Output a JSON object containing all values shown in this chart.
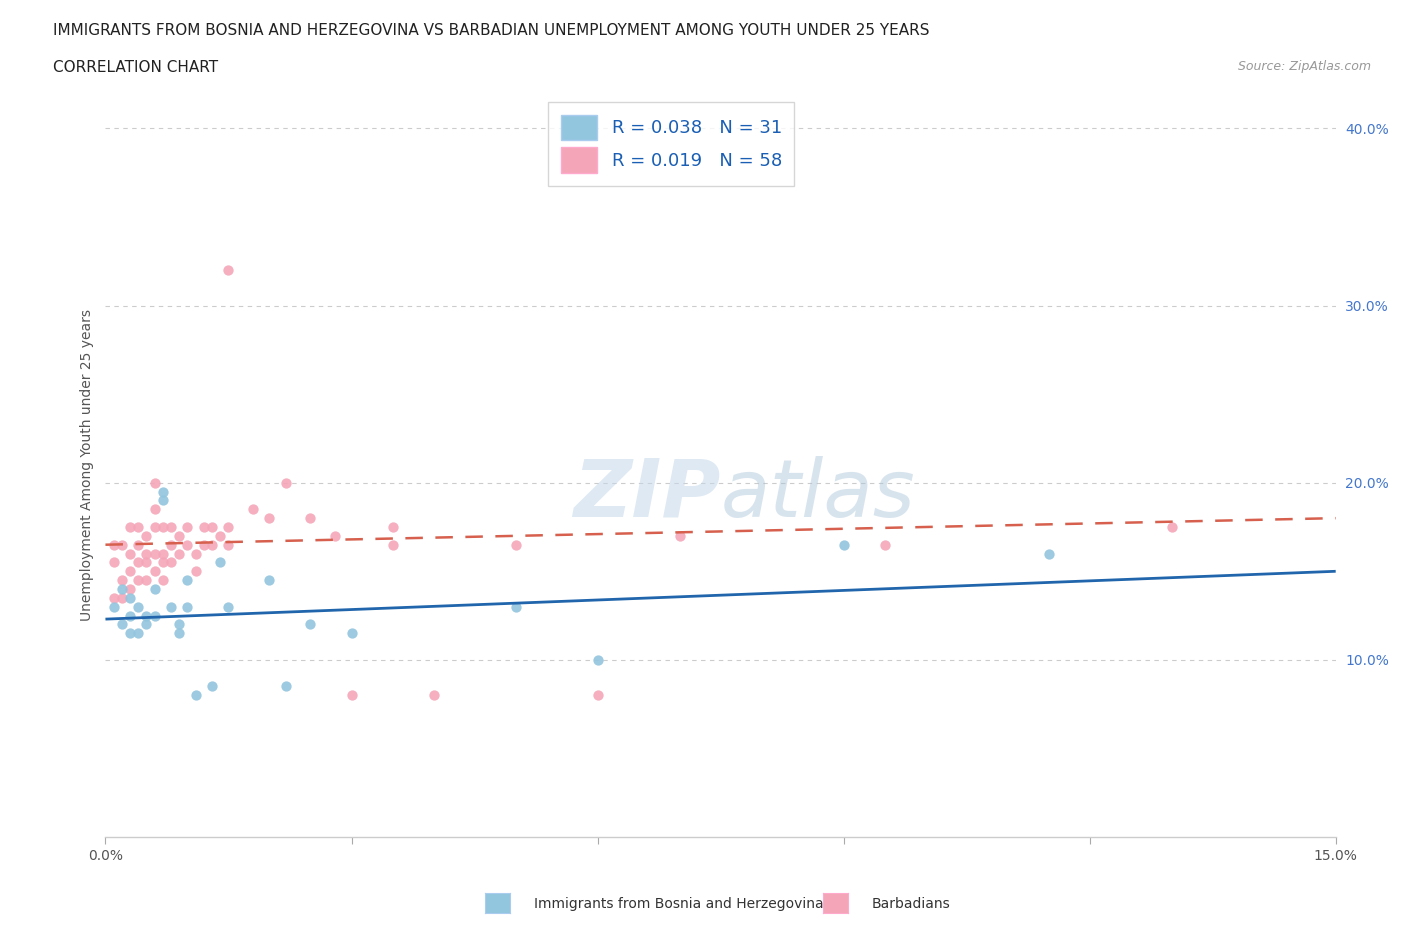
{
  "title_line1": "IMMIGRANTS FROM BOSNIA AND HERZEGOVINA VS BARBADIAN UNEMPLOYMENT AMONG YOUTH UNDER 25 YEARS",
  "title_line2": "CORRELATION CHART",
  "source_text": "Source: ZipAtlas.com",
  "ylabel": "Unemployment Among Youth under 25 years",
  "xlim": [
    0.0,
    0.15
  ],
  "ylim": [
    0.0,
    0.42
  ],
  "y_ticks_right": [
    0.1,
    0.2,
    0.3,
    0.4
  ],
  "y_tick_labels_right": [
    "10.0%",
    "20.0%",
    "30.0%",
    "40.0%"
  ],
  "blue_color": "#92c5de",
  "pink_color": "#f4a6b8",
  "blue_line_color": "#2166ac",
  "pink_line_color": "#d6604d",
  "blue_label": "Immigrants from Bosnia and Herzegovina",
  "pink_label": "Barbadians",
  "R_blue": 0.038,
  "N_blue": 31,
  "R_pink": 0.019,
  "N_pink": 58,
  "blue_scatter_x": [
    0.001,
    0.002,
    0.002,
    0.003,
    0.003,
    0.003,
    0.004,
    0.004,
    0.005,
    0.005,
    0.006,
    0.006,
    0.007,
    0.007,
    0.008,
    0.009,
    0.009,
    0.01,
    0.01,
    0.011,
    0.013,
    0.014,
    0.015,
    0.02,
    0.022,
    0.025,
    0.03,
    0.05,
    0.06,
    0.09,
    0.115
  ],
  "blue_scatter_y": [
    0.13,
    0.12,
    0.14,
    0.125,
    0.135,
    0.115,
    0.13,
    0.115,
    0.12,
    0.125,
    0.14,
    0.125,
    0.195,
    0.19,
    0.13,
    0.12,
    0.115,
    0.145,
    0.13,
    0.08,
    0.085,
    0.155,
    0.13,
    0.145,
    0.085,
    0.12,
    0.115,
    0.13,
    0.1,
    0.165,
    0.16
  ],
  "pink_scatter_x": [
    0.001,
    0.001,
    0.001,
    0.002,
    0.002,
    0.002,
    0.003,
    0.003,
    0.003,
    0.003,
    0.004,
    0.004,
    0.004,
    0.004,
    0.005,
    0.005,
    0.005,
    0.005,
    0.006,
    0.006,
    0.006,
    0.006,
    0.006,
    0.007,
    0.007,
    0.007,
    0.007,
    0.008,
    0.008,
    0.008,
    0.009,
    0.009,
    0.01,
    0.01,
    0.011,
    0.011,
    0.012,
    0.012,
    0.013,
    0.013,
    0.014,
    0.015,
    0.015,
    0.015,
    0.018,
    0.02,
    0.022,
    0.025,
    0.028,
    0.03,
    0.035,
    0.035,
    0.04,
    0.05,
    0.06,
    0.07,
    0.095,
    0.13
  ],
  "pink_scatter_y": [
    0.155,
    0.165,
    0.135,
    0.145,
    0.165,
    0.135,
    0.16,
    0.175,
    0.14,
    0.15,
    0.165,
    0.145,
    0.175,
    0.155,
    0.17,
    0.16,
    0.145,
    0.155,
    0.2,
    0.185,
    0.175,
    0.16,
    0.15,
    0.175,
    0.16,
    0.155,
    0.145,
    0.175,
    0.165,
    0.155,
    0.17,
    0.16,
    0.175,
    0.165,
    0.16,
    0.15,
    0.175,
    0.165,
    0.175,
    0.165,
    0.17,
    0.32,
    0.175,
    0.165,
    0.185,
    0.18,
    0.2,
    0.18,
    0.17,
    0.08,
    0.175,
    0.165,
    0.08,
    0.165,
    0.08,
    0.17,
    0.165,
    0.175
  ],
  "watermark_zip": "ZIP",
  "watermark_atlas": "atlas",
  "background_color": "#ffffff",
  "grid_color": "#cccccc",
  "title_fontsize": 11,
  "axis_fontsize": 10,
  "legend_fontsize": 13
}
